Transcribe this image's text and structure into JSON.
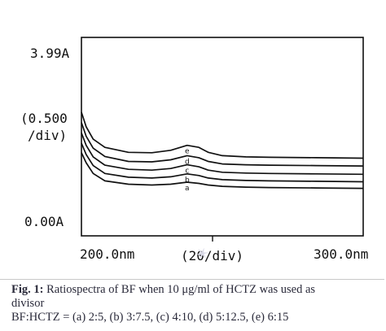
{
  "chart_data": {
    "type": "line",
    "title": "",
    "y_top_label": "3.99A",
    "y_scale_label_line1": "(0.500",
    "y_scale_label_line2": "/div)",
    "y_bottom_label": "0.00A",
    "x_left_label": "200.0nm",
    "x_scale_label": "(20/div)",
    "x_right_label": "300.0nm",
    "xlim": [
      190,
      310
    ],
    "ylim": [
      0,
      3.99
    ],
    "x": [
      190,
      192,
      195,
      200,
      210,
      220,
      228,
      235,
      240,
      244,
      250,
      260,
      270,
      290,
      310
    ],
    "series": [
      {
        "name": "e",
        "values": [
          2.3,
          1.95,
          1.65,
          1.45,
          1.33,
          1.32,
          1.38,
          1.5,
          1.45,
          1.33,
          1.25,
          1.22,
          1.21,
          1.2,
          1.19
        ]
      },
      {
        "name": "d",
        "values": [
          2.05,
          1.72,
          1.43,
          1.23,
          1.11,
          1.1,
          1.15,
          1.25,
          1.2,
          1.11,
          1.05,
          1.03,
          1.02,
          1.01,
          1.0
        ]
      },
      {
        "name": "c",
        "values": [
          1.8,
          1.5,
          1.22,
          1.02,
          0.92,
          0.9,
          0.94,
          1.03,
          0.98,
          0.9,
          0.85,
          0.83,
          0.82,
          0.81,
          0.8
        ]
      },
      {
        "name": "b",
        "values": [
          1.55,
          1.28,
          1.01,
          0.82,
          0.73,
          0.71,
          0.74,
          0.81,
          0.77,
          0.71,
          0.67,
          0.65,
          0.64,
          0.63,
          0.62
        ]
      },
      {
        "name": "a",
        "values": [
          1.32,
          1.08,
          0.82,
          0.64,
          0.56,
          0.54,
          0.56,
          0.61,
          0.58,
          0.54,
          0.51,
          0.49,
          0.48,
          0.47,
          0.46
        ]
      }
    ]
  },
  "caption": {
    "fig_number": "Fig. 1:",
    "line1_text": "Ratiospectra of BF when 10 μg/ml of HCTZ was used as",
    "line2_text": "divisor",
    "line3_text": "BF:HCTZ = (a)  2:5,  (b)  3:7.5, (c)  4:10,  (d)  5:12.5,  (e)  6:15"
  }
}
